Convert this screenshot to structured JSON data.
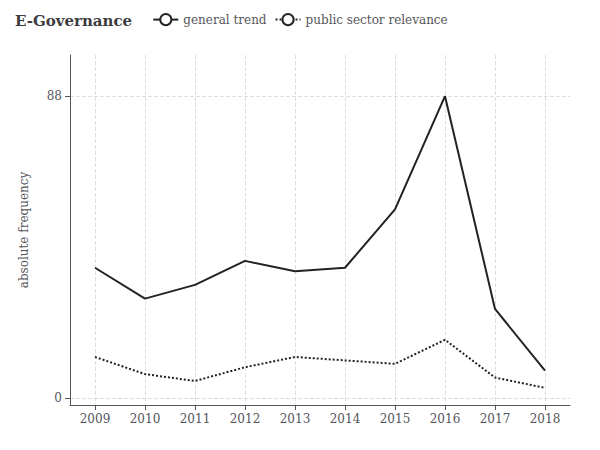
{
  "chart_data": {
    "type": "line",
    "title": "E-Governance",
    "ylabel": "absolute frequency",
    "x": [
      2009,
      2010,
      2011,
      2012,
      2013,
      2014,
      2015,
      2016,
      2017,
      2018
    ],
    "series": [
      {
        "name": "general trend",
        "color": "#222222",
        "line_style": "solid",
        "values": [
          38,
          29,
          33,
          40,
          37,
          38,
          55,
          88,
          26,
          8
        ]
      },
      {
        "name": "public sector relevance",
        "color": "#222222",
        "line_style": "dotted",
        "values": [
          12,
          7,
          5,
          9,
          12,
          11,
          10,
          17,
          6,
          3
        ]
      }
    ],
    "xlim": [
      2008.5,
      2018.5
    ],
    "xticks": [
      2009,
      2010,
      2011,
      2012,
      2013,
      2014,
      2015,
      2016,
      2017,
      2018
    ],
    "ylim": [
      -2,
      100
    ],
    "yticks": [
      0,
      88
    ],
    "grid": true,
    "legend": "top"
  }
}
